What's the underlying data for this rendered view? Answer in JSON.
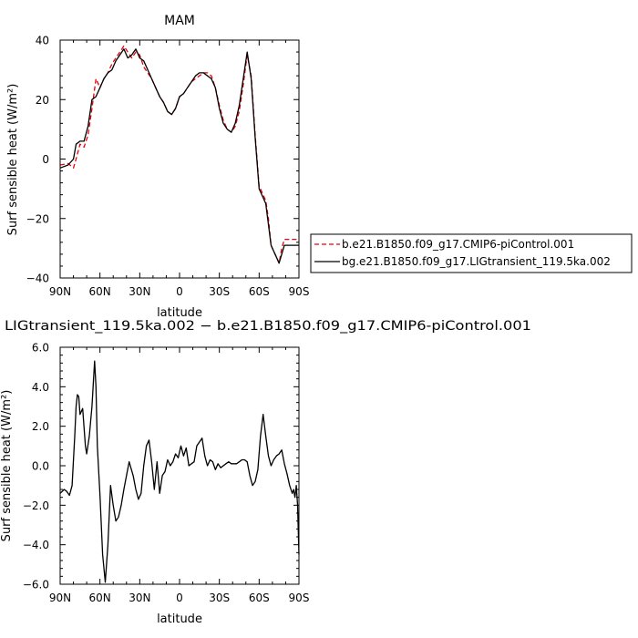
{
  "chart_data": [
    {
      "type": "line",
      "title": "MAM",
      "xlabel": "latitude",
      "ylabel": "Surf sensible heat (W/m²)",
      "xlim": [
        90,
        -90
      ],
      "ylim": [
        -40,
        40
      ],
      "xticks": [
        90,
        60,
        30,
        0,
        -30,
        -60,
        -90
      ],
      "xtick_labels": [
        "90N",
        "60N",
        "30N",
        "0",
        "30S",
        "60S",
        "90S"
      ],
      "yticks": [
        -40,
        -20,
        0,
        20,
        40
      ],
      "ytick_labels": [
        "−40",
        "−20",
        "0",
        "20",
        "40"
      ],
      "legend_position": "right",
      "series": [
        {
          "name": "b.e21.B1850.f09_g17.CMIP6-piControl.001",
          "color": "#e8000b",
          "dash": "dashed",
          "x": [
            90,
            84,
            80,
            78,
            75,
            72,
            69,
            66,
            63,
            60,
            57,
            54,
            51,
            48,
            45,
            42,
            39,
            36,
            33,
            30,
            27,
            24,
            21,
            18,
            15,
            12,
            9,
            6,
            3,
            0,
            -3,
            -6,
            -9,
            -12,
            -15,
            -18,
            -21,
            -24,
            -27,
            -30,
            -33,
            -36,
            -39,
            -42,
            -45,
            -48,
            -51,
            -54,
            -57,
            -60,
            -63,
            -65,
            -67,
            -69,
            -71,
            -73,
            -75,
            -77,
            -79,
            -81,
            -83,
            -85,
            -87,
            -89,
            -90
          ],
          "y": [
            -2,
            -1.5,
            -3,
            0,
            5,
            4,
            8,
            17,
            27,
            24,
            27,
            29,
            32,
            34,
            36,
            38,
            36,
            34,
            36,
            35,
            31,
            29,
            27,
            24,
            21,
            19,
            16,
            15,
            17,
            21,
            22,
            24,
            26,
            27,
            28,
            29,
            29,
            28,
            24,
            18,
            13,
            10,
            9,
            11,
            16,
            25,
            35,
            28,
            8,
            -9,
            -12,
            -14,
            -20,
            -29,
            -31,
            -33,
            -35,
            -30,
            -27,
            -27,
            -27,
            -27,
            -27,
            -27,
            -27
          ]
        },
        {
          "name": "bg.e21.B1850.f09_g17.LIGtransient_119.5ka.002",
          "color": "#000000",
          "dash": "solid",
          "x": [
            90,
            84,
            80,
            78,
            75,
            72,
            69,
            66,
            63,
            60,
            57,
            54,
            51,
            48,
            45,
            42,
            39,
            36,
            33,
            30,
            27,
            24,
            21,
            18,
            15,
            12,
            9,
            6,
            3,
            0,
            -3,
            -6,
            -9,
            -12,
            -15,
            -18,
            -21,
            -24,
            -27,
            -30,
            -33,
            -36,
            -39,
            -42,
            -45,
            -48,
            -51,
            -54,
            -57,
            -60,
            -63,
            -65,
            -67,
            -69,
            -71,
            -73,
            -75,
            -77,
            -79,
            -81,
            -83,
            -85,
            -87,
            -89,
            -90
          ],
          "y": [
            -3,
            -2,
            0,
            5,
            6,
            6,
            11,
            20,
            21,
            24,
            27,
            29,
            30,
            33,
            35,
            37,
            34,
            35,
            37,
            34,
            33,
            30,
            27,
            24,
            21,
            19,
            16,
            15,
            17,
            21,
            22,
            24,
            26,
            28,
            29,
            29,
            28,
            27,
            24,
            17,
            12,
            10,
            9,
            12,
            18,
            27,
            36,
            27,
            7,
            -10,
            -13,
            -15,
            -22,
            -29,
            -31,
            -33,
            -35,
            -32,
            -29,
            -29,
            -29,
            -29,
            -29,
            -29,
            -29
          ]
        }
      ]
    },
    {
      "type": "line",
      "title": "LIGtransient_119.5ka.002 − b.e21.B1850.f09_g17.CMIP6-piControl.001",
      "xlabel": "latitude",
      "ylabel": "Surf sensible heat (W/m²)",
      "xlim": [
        90,
        -90
      ],
      "ylim": [
        -6,
        6
      ],
      "xticks": [
        90,
        60,
        30,
        0,
        -30,
        -60,
        -90
      ],
      "xtick_labels": [
        "90N",
        "60N",
        "30N",
        "0",
        "30S",
        "60S",
        "90S"
      ],
      "yticks": [
        -6,
        -4,
        -2,
        0,
        2,
        4,
        6
      ],
      "ytick_labels": [
        "−6.0",
        "−4.0",
        "−2.0",
        "0.0",
        "2.0",
        "4.0",
        "6.0"
      ],
      "series": [
        {
          "color": "#000000",
          "x": [
            90,
            87,
            85,
            83,
            81,
            79,
            78,
            77,
            76,
            75,
            73,
            71,
            70,
            68,
            66,
            64,
            63,
            62,
            60,
            58,
            56,
            54,
            52,
            50,
            48,
            46,
            44,
            42,
            40,
            38,
            35,
            33,
            31,
            29,
            27,
            25,
            23,
            21,
            19,
            17,
            15,
            13,
            11,
            9,
            7,
            5,
            3,
            1,
            -1,
            -3,
            -5,
            -7,
            -9,
            -11,
            -13,
            -15,
            -17,
            -19,
            -21,
            -23,
            -25,
            -27,
            -29,
            -31,
            -33,
            -35,
            -37,
            -39,
            -41,
            -43,
            -45,
            -47,
            -49,
            -51,
            -53,
            -55,
            -57,
            -59,
            -61,
            -63,
            -65,
            -67,
            -69,
            -71,
            -73,
            -75,
            -77,
            -79,
            -81,
            -83,
            -85,
            -86,
            -87,
            -88,
            -89,
            -90
          ],
          "y": [
            -1.4,
            -1.2,
            -1.3,
            -1.5,
            -1.0,
            1.5,
            3.0,
            3.6,
            3.5,
            2.6,
            2.9,
            1.0,
            0.6,
            1.5,
            3.0,
            5.3,
            4.0,
            1.0,
            -1.5,
            -4.5,
            -5.9,
            -4.0,
            -1.0,
            -2.0,
            -2.8,
            -2.6,
            -2.0,
            -1.2,
            -0.5,
            0.2,
            -0.5,
            -1.2,
            -1.7,
            -1.4,
            0.0,
            1.0,
            1.3,
            0.2,
            -1.2,
            0.2,
            -1.4,
            -0.5,
            -0.3,
            0.3,
            0.0,
            0.2,
            0.6,
            0.4,
            1.0,
            0.5,
            0.9,
            0.0,
            0.1,
            0.2,
            1.0,
            1.2,
            1.4,
            0.5,
            0.0,
            0.3,
            0.2,
            -0.2,
            0.1,
            -0.1,
            0.0,
            0.1,
            0.2,
            0.1,
            0.1,
            0.1,
            0.2,
            0.3,
            0.3,
            0.2,
            -0.5,
            -1.0,
            -0.8,
            -0.2,
            1.5,
            2.6,
            1.5,
            0.5,
            0.0,
            0.3,
            0.5,
            0.6,
            0.8,
            0.1,
            -0.4,
            -1.0,
            -1.4,
            -1.2,
            -1.6,
            -1.0,
            -2.0,
            -4.5
          ]
        }
      ]
    }
  ]
}
